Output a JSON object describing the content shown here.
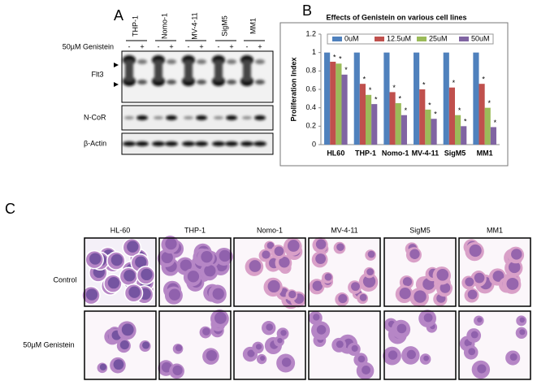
{
  "panel_a": {
    "label": "A",
    "lanes": [
      "THP-1",
      "Nomo-1",
      "MV-4-11",
      "SigM5",
      "MM1"
    ],
    "treatment": "50µM Genistein",
    "treatment_states": [
      "-",
      "+"
    ],
    "rows": [
      "Flt3",
      "N-CoR",
      "β-Actin"
    ]
  },
  "panel_b": {
    "label": "B"
  },
  "chart_data": {
    "type": "bar",
    "title": "Effects of Genistein on various cell lines",
    "y_label": "Proliferation Index",
    "categories": [
      "HL60",
      "THP-1",
      "Nomo-1",
      "MV-4-11",
      "SigM5",
      "MM1"
    ],
    "series": [
      {
        "name": "0uM",
        "color": "#4f81bd",
        "values": [
          1,
          1,
          1,
          1,
          1,
          1
        ]
      },
      {
        "name": "12.5uM",
        "color": "#c0504d",
        "values": [
          0.9,
          0.66,
          0.57,
          0.6,
          0.62,
          0.66
        ],
        "annotations": [
          "*",
          "*",
          "*",
          "*",
          "*",
          "*"
        ]
      },
      {
        "name": "25uM",
        "color": "#9bbb59",
        "values": [
          0.88,
          0.54,
          0.45,
          0.38,
          0.32,
          0.4
        ],
        "annotations": [
          "*",
          "*",
          "*",
          "*",
          "*",
          "*"
        ]
      },
      {
        "name": "50uM",
        "color": "#8064a2",
        "values": [
          0.76,
          0.44,
          0.32,
          0.28,
          0.2,
          0.19
        ],
        "annotations": [
          "*",
          "*",
          "*",
          "*",
          "*",
          "*"
        ]
      }
    ],
    "ylim": [
      0,
      1.2
    ],
    "yticks": [
      0,
      0.2,
      0.4,
      0.6,
      0.8,
      1,
      1.2
    ],
    "grid": false,
    "legend": "top"
  },
  "panel_c": {
    "label": "C",
    "columns": [
      "HL-60",
      "THP-1",
      "Nomo-1",
      "MV-4-11",
      "SigM5",
      "MM1"
    ],
    "rows": [
      "Control",
      "50µM Genistein"
    ]
  }
}
